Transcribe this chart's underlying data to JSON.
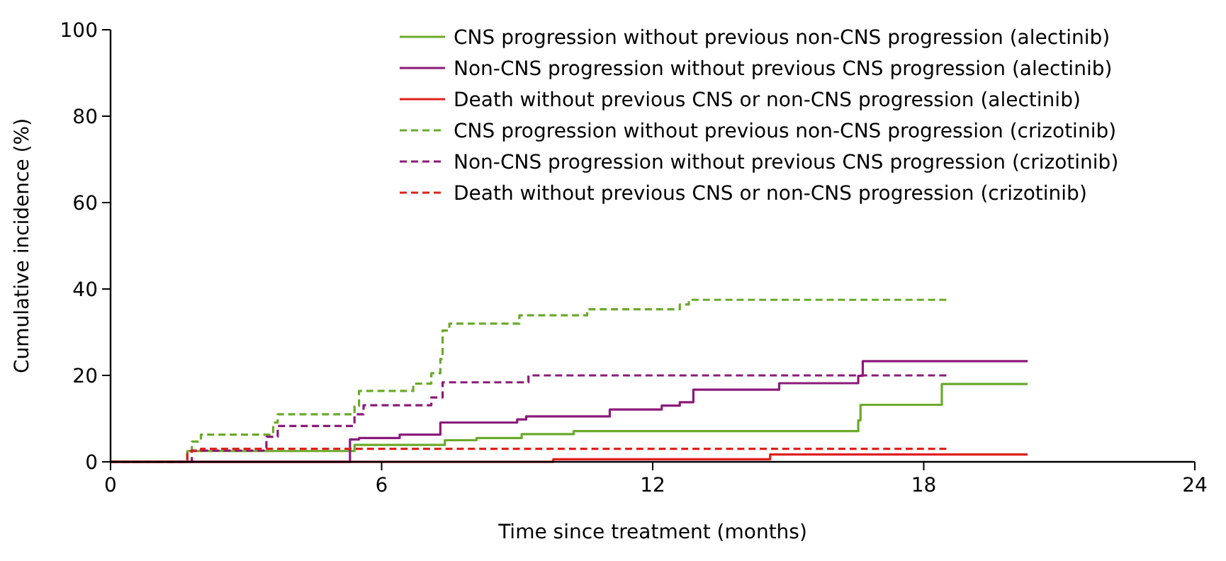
{
  "chart_data": {
    "type": "step",
    "xlabel": "Time since treatment (months)",
    "ylabel": "Cumulative incidence (%)",
    "xlim": [
      0,
      24
    ],
    "xticks": [
      0,
      6,
      12,
      18,
      24
    ],
    "ylim": [
      0,
      100
    ],
    "yticks": [
      0,
      20,
      40,
      60,
      80,
      100
    ],
    "grid": false,
    "legend": "top right",
    "series": [
      {
        "name": "CNS progression without previous non-CNS progression (alectinib)",
        "color": "#6aaa2a",
        "line_style": "solid",
        "x": [
          0,
          1.7,
          5.4,
          7.4,
          8.1,
          9.1,
          10.25,
          16.55,
          16.6,
          18.4,
          20.3
        ],
        "values": [
          0,
          2.5,
          3.9,
          5.0,
          5.5,
          6.4,
          7.1,
          9.6,
          13.2,
          18.0,
          18.0
        ]
      },
      {
        "name": "Non-CNS progression without previous CNS progression (alectinib)",
        "color": "#8b1a7a",
        "line_style": "solid",
        "x": [
          0,
          5.3,
          5.5,
          6.4,
          7.3,
          9.0,
          9.2,
          11.05,
          12.2,
          12.6,
          12.9,
          14.8,
          16.55,
          16.65,
          20.3
        ],
        "values": [
          0,
          5.2,
          5.5,
          6.3,
          9.1,
          9.8,
          10.5,
          12.1,
          13.0,
          13.8,
          16.7,
          18.2,
          19.9,
          23.3,
          23.3
        ]
      },
      {
        "name": "Death without previous CNS or non-CNS progression (alectinib)",
        "color": "#e0201b",
        "line_style": "solid",
        "x": [
          0,
          9.8,
          14.6,
          20.3
        ],
        "values": [
          0,
          0.6,
          1.7,
          1.7
        ]
      },
      {
        "name": "CNS progression without previous non-CNS progression (crizotinib)",
        "color": "#6aaa2a",
        "line_style": "dashed",
        "x": [
          0,
          1.7,
          1.8,
          2.0,
          3.6,
          3.7,
          5.4,
          5.5,
          6.7,
          7.1,
          7.3,
          7.35,
          7.5,
          9.05,
          10.55,
          12.6,
          12.8,
          18.5
        ],
        "values": [
          0,
          2.5,
          4.7,
          6.3,
          9.1,
          11.0,
          12.9,
          16.4,
          18.1,
          20.5,
          23.8,
          30.4,
          32.0,
          33.9,
          35.3,
          36.4,
          37.5,
          37.5
        ]
      },
      {
        "name": "Non-CNS progression without previous CNS progression (crizotinib)",
        "color": "#8b1a7a",
        "line_style": "dashed",
        "x": [
          0,
          1.8,
          3.45,
          3.7,
          5.4,
          5.6,
          7.1,
          7.35,
          9.25,
          18.5
        ],
        "values": [
          0,
          2.6,
          5.8,
          8.3,
          11.0,
          13.1,
          14.9,
          18.4,
          20.0,
          20.0
        ]
      },
      {
        "name": "Death without previous CNS or non-CNS progression (crizotinib)",
        "color": "#e0201b",
        "line_style": "dashed",
        "x": [
          0,
          1.7,
          2.0,
          18.5
        ],
        "values": [
          0,
          2.5,
          3.0,
          3.0
        ]
      }
    ]
  }
}
